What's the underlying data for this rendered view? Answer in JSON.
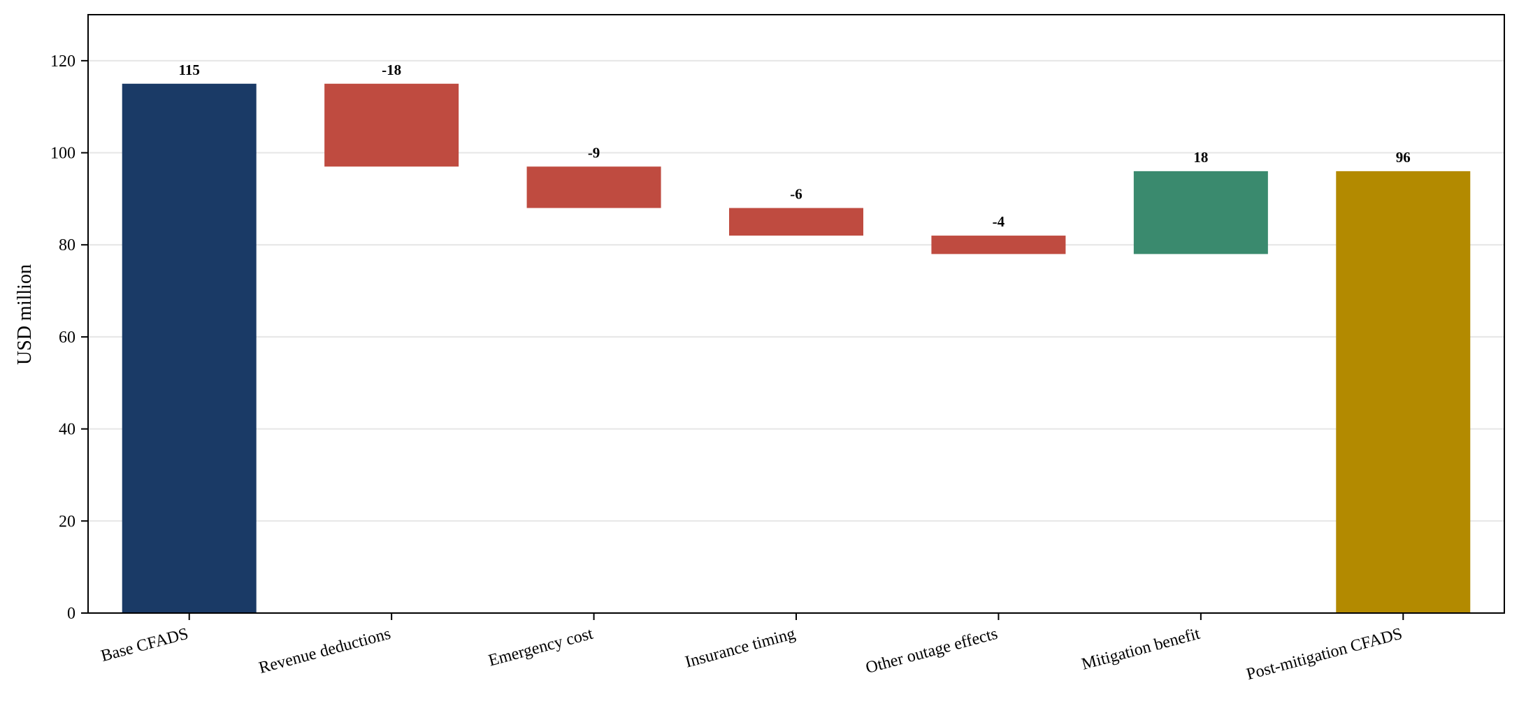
{
  "chart_data": {
    "type": "bar",
    "subtype": "waterfall",
    "title": "",
    "xlabel": "",
    "ylabel": "USD million",
    "ylim": [
      0,
      130
    ],
    "yticks": [
      0,
      20,
      40,
      60,
      80,
      100,
      120
    ],
    "grid": "horizontal",
    "legend": "none",
    "categories": [
      "Base CFADS",
      "Revenue deductions",
      "Emergency cost",
      "Insurance timing",
      "Other outage effects",
      "Mitigation benefit",
      "Post-mitigation CFADS"
    ],
    "values": [
      115,
      -18,
      -9,
      -6,
      -4,
      18,
      96
    ],
    "data_labels": [
      "115",
      "-18",
      "-9",
      "-6",
      "-4",
      "18",
      "96"
    ],
    "bar_kind": [
      "total",
      "delta",
      "delta",
      "delta",
      "delta",
      "delta",
      "total"
    ],
    "colors": {
      "base_total": "#1a3a66",
      "decrease": "#bf4b40",
      "increase": "#3a8a6e",
      "final_total": "#b38a00"
    }
  }
}
